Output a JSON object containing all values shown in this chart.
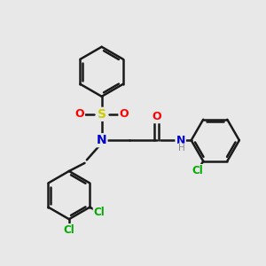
{
  "background_color": "#e8e8e8",
  "bond_color": "#1a1a1a",
  "bond_width": 1.8,
  "atom_colors": {
    "N": "#0000cc",
    "S": "#cccc00",
    "O": "#ff0000",
    "Cl": "#00aa00",
    "H": "#888888"
  },
  "figsize": [
    3.0,
    3.0
  ],
  "dpi": 100,
  "xlim": [
    0,
    10
  ],
  "ylim": [
    0,
    10
  ]
}
